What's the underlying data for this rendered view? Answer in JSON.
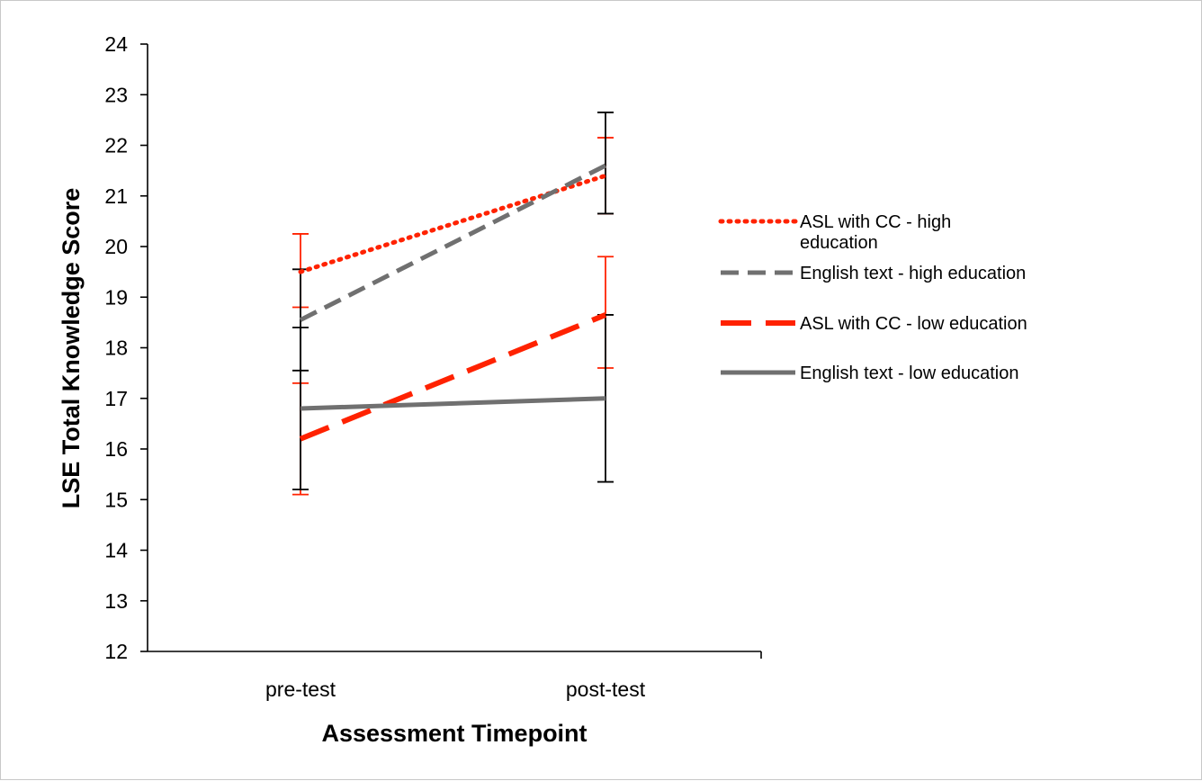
{
  "chart_data": {
    "type": "line",
    "xlabel": "Assessment Timepoint",
    "ylabel": "LSE Total Knowledge Score",
    "categories": [
      "pre-test",
      "post-test"
    ],
    "ylim": [
      12,
      24
    ],
    "yticks": [
      "12",
      "13",
      "14",
      "15",
      "16",
      "17",
      "18",
      "19",
      "20",
      "21",
      "22",
      "23",
      "24"
    ],
    "grid": false,
    "legend_position": "right",
    "series": [
      {
        "name": "ASL with CC - high education",
        "name_lines": [
          "ASL with CC - high",
          "education"
        ],
        "values": [
          19.5,
          21.4
        ],
        "err_low": [
          18.8,
          20.65
        ],
        "err_high": [
          20.25,
          22.15
        ],
        "color": "#ff2200",
        "err_color": "#ff2200",
        "style": "dotted"
      },
      {
        "name": "English text - high education",
        "name_lines": [
          "English text - high education"
        ],
        "values": [
          18.55,
          21.6
        ],
        "err_low": [
          17.55,
          20.65
        ],
        "err_high": [
          19.55,
          22.65
        ],
        "color": "#707070",
        "err_color": "#000000",
        "style": "dashed"
      },
      {
        "name": "ASL with CC - low education",
        "name_lines": [
          "ASL with CC - low education"
        ],
        "values": [
          16.2,
          18.65
        ],
        "err_low": [
          15.1,
          17.6
        ],
        "err_high": [
          17.3,
          19.8
        ],
        "color": "#ff2200",
        "err_color": "#ff2200",
        "style": "longdash"
      },
      {
        "name": "English text - low education",
        "name_lines": [
          "English text - low education"
        ],
        "values": [
          16.8,
          17.0
        ],
        "err_low": [
          15.2,
          15.35
        ],
        "err_high": [
          18.4,
          18.65
        ],
        "color": "#707070",
        "err_color": "#000000",
        "style": "solid"
      }
    ]
  }
}
